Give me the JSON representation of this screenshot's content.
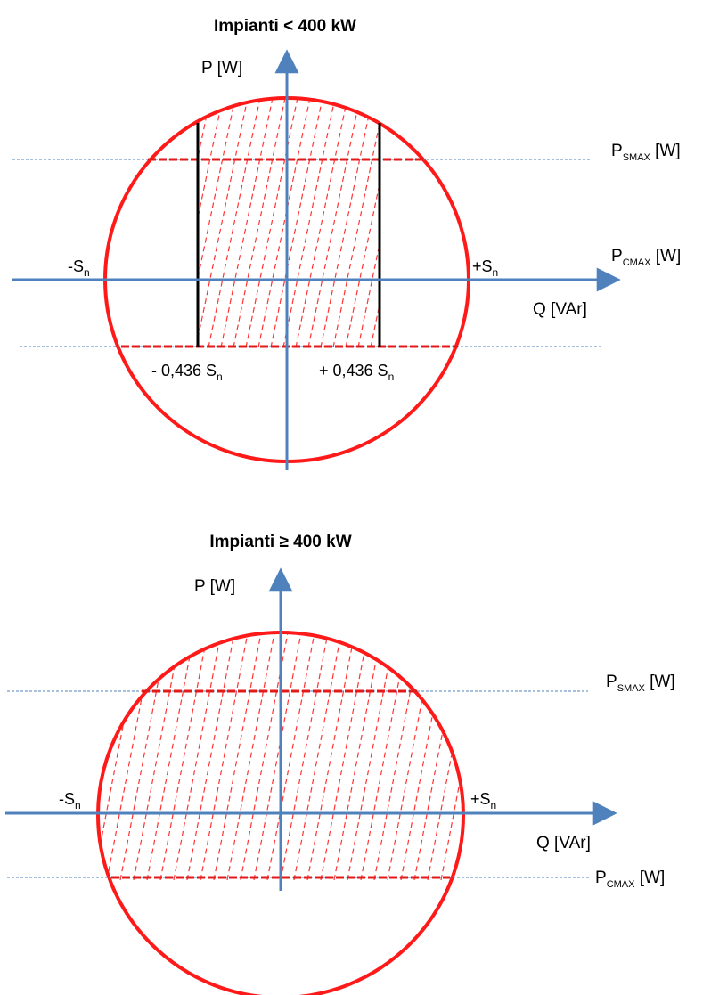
{
  "colors": {
    "circle": "#ff1a1a",
    "hatch": "#ff3333",
    "axis": "#4f81bd",
    "guide": "#4f81bd",
    "limit": "#000000",
    "text": "#000000"
  },
  "diagram_top": {
    "title": "Impianti < 400 kW",
    "p_axis": "P [W]",
    "q_axis": "Q [VAr]",
    "neg_sn": {
      "main": "-S",
      "sub": "n"
    },
    "pos_sn": {
      "main": "+S",
      "sub": "n"
    },
    "p_smax": {
      "main": "P",
      "sub": "SMAX",
      "unit": " [W]"
    },
    "p_cmax": {
      "main": "P",
      "sub": "CMAX",
      "unit": " [W]"
    },
    "neg_limit": {
      "main": "- 0,436 S",
      "sub": "n"
    },
    "pos_limit": {
      "main": "+ 0,436 S",
      "sub": "n"
    }
  },
  "diagram_bottom": {
    "title": "Impianti ≥ 400 kW",
    "p_axis": "P [W]",
    "q_axis": "Q [VAr]",
    "neg_sn": {
      "main": "-S",
      "sub": "n"
    },
    "pos_sn": {
      "main": "+S",
      "sub": "n"
    },
    "p_smax": {
      "main": "P",
      "sub": "SMAX",
      "unit": " [W]"
    },
    "p_cmax": {
      "main": "P",
      "sub": "CMAX",
      "unit": " [W]"
    }
  }
}
